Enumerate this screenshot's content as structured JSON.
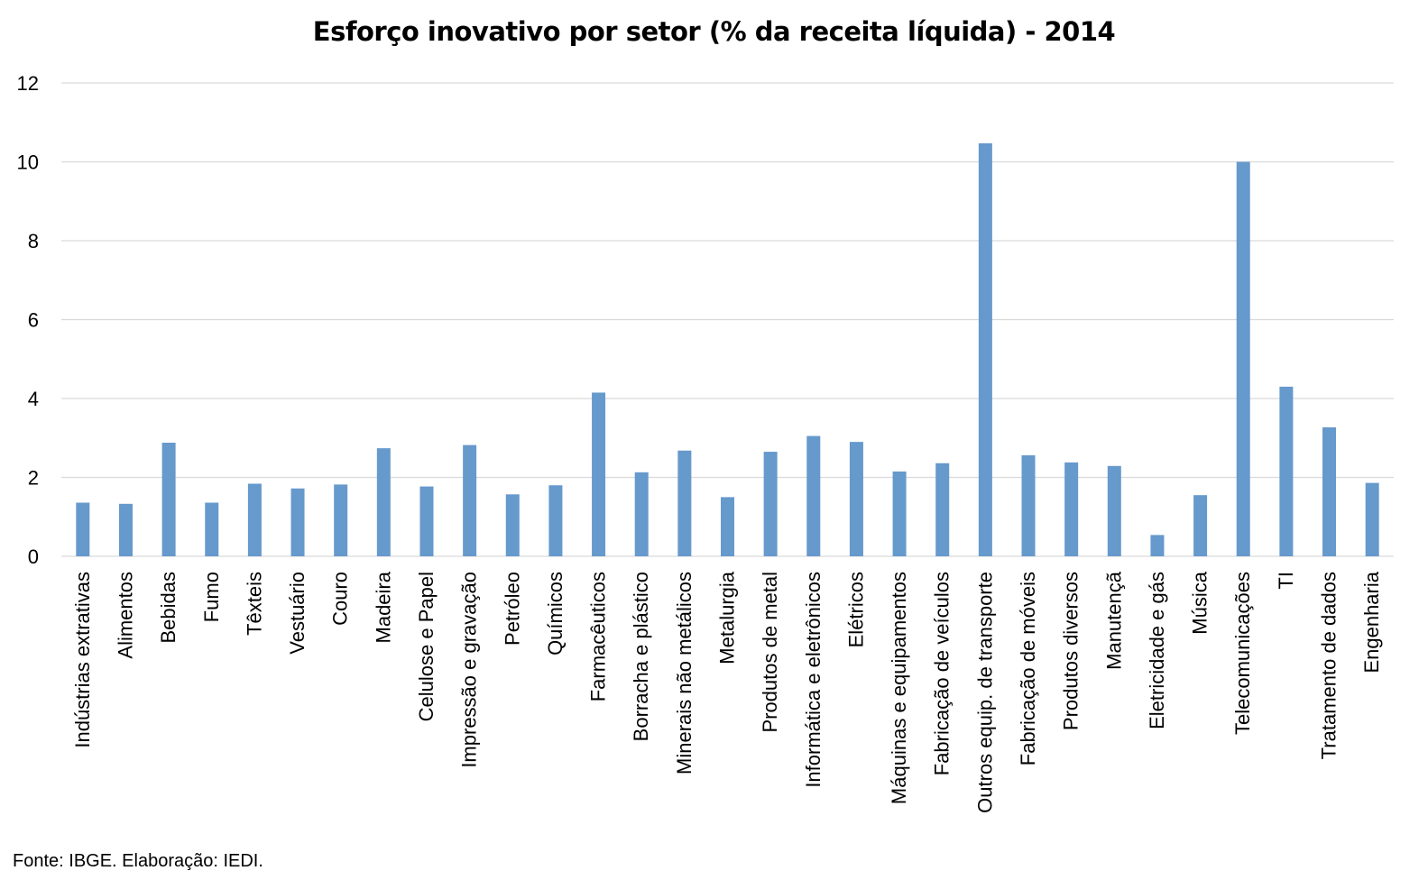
{
  "chart_data": {
    "type": "bar",
    "title": "Esforço inovativo por setor (% da receita líquida) - 2014",
    "xlabel": "",
    "ylabel": "",
    "ylim": [
      0,
      12
    ],
    "yticks": [
      0,
      2,
      4,
      6,
      8,
      10,
      12
    ],
    "grid": true,
    "legend": "none",
    "bar_color": "#6699cc",
    "categories": [
      "Indústrias extrativas",
      "Alimentos",
      "Bebidas",
      "Fumo",
      "Têxteis",
      "Vestuário",
      "Couro",
      "Madeira",
      "Celulose e Papel",
      "Impressão e gravação",
      "Petróleo",
      "Químicos",
      "Farmacêuticos",
      "Borracha e plástico",
      "Minerais não metálicos",
      "Metalurgia",
      "Produtos de metal",
      "Informática e eletrônicos",
      "Elétricos",
      "Máquinas e equipamentos",
      "Fabricação de veículos",
      "Outros equip. de transporte",
      "Fabricação de móveis",
      "Produtos diversos",
      "Manutençã",
      "Eletricidade e gás",
      "Música",
      "Telecomunicações",
      "TI",
      "Tratamento de dados",
      "Engenharia"
    ],
    "values": [
      1.36,
      1.33,
      2.88,
      1.36,
      1.84,
      1.72,
      1.82,
      2.74,
      1.77,
      2.82,
      1.57,
      1.8,
      4.15,
      2.13,
      2.68,
      1.5,
      2.65,
      3.05,
      2.9,
      2.15,
      2.36,
      10.47,
      2.56,
      2.38,
      2.29,
      0.54,
      1.55,
      10.0,
      4.3,
      3.27,
      1.86
    ],
    "source": "Fonte: IBGE. Elaboração: IEDI."
  }
}
